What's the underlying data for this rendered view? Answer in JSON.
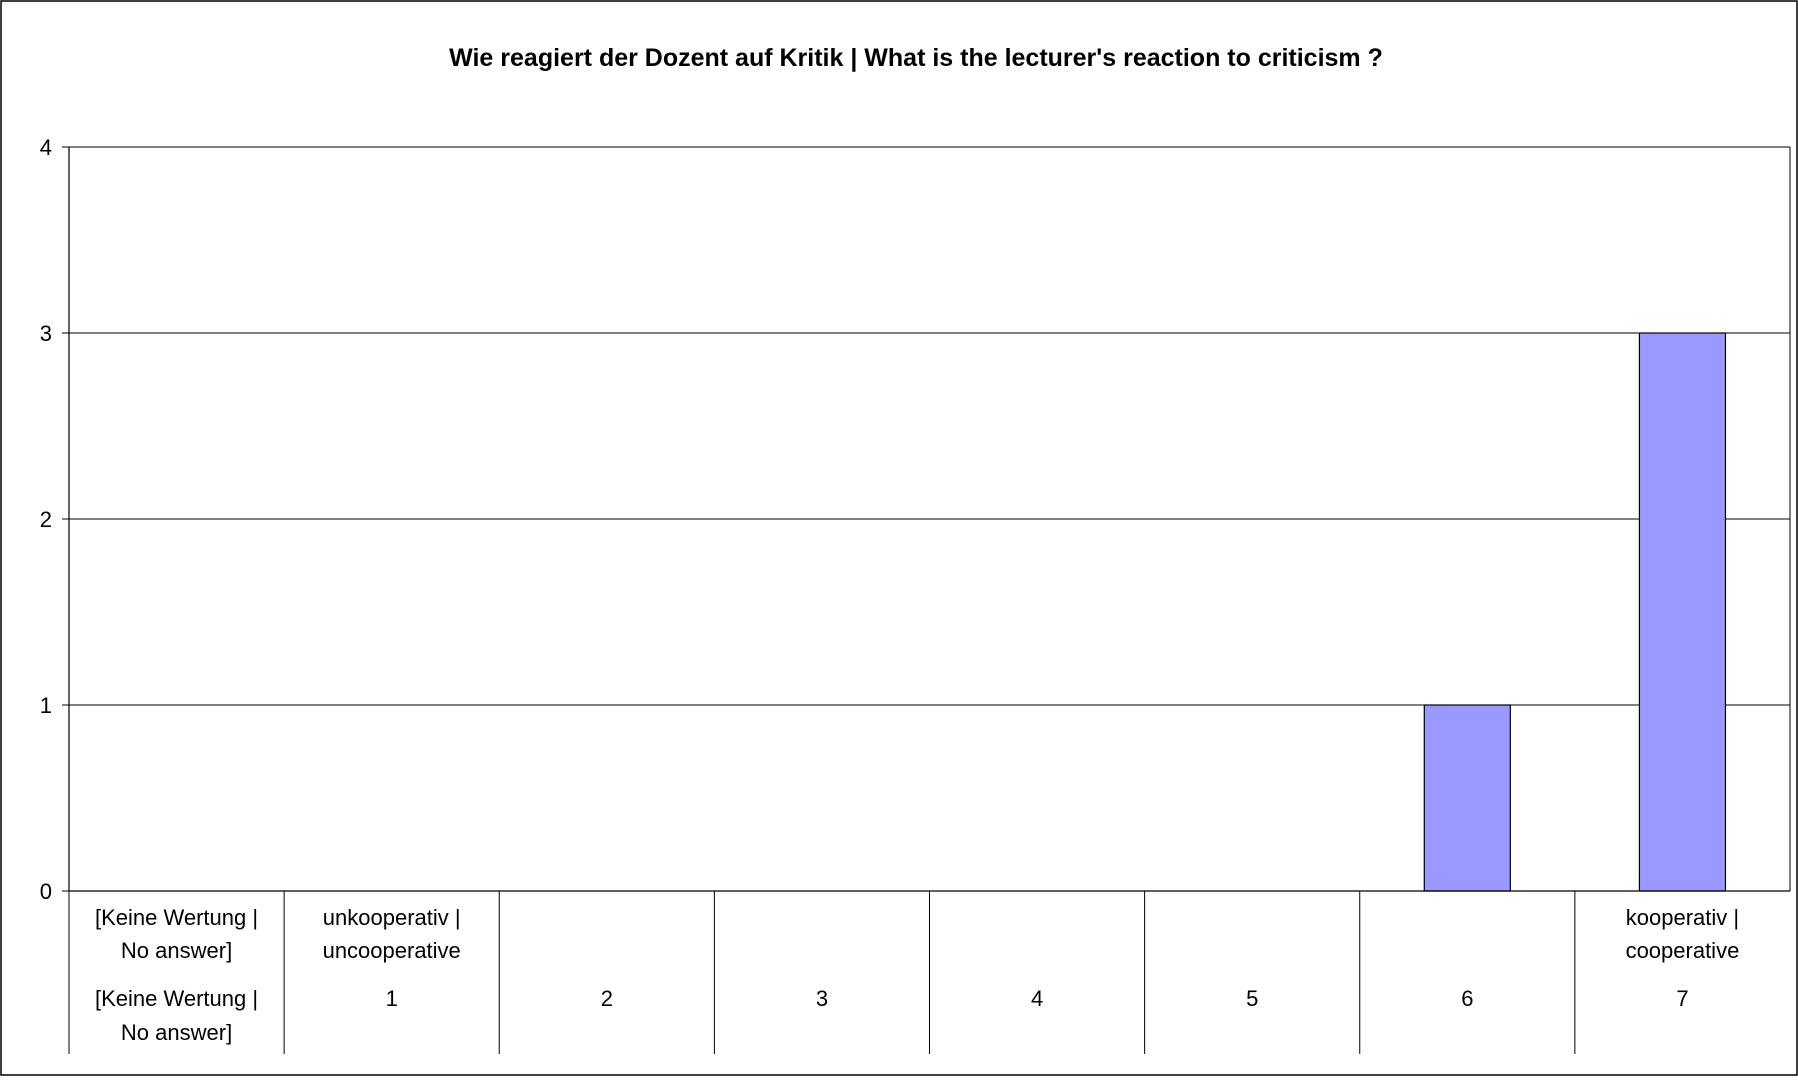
{
  "chart_data": {
    "type": "bar",
    "title": "Wie reagiert der Dozent auf Kritik | What is the lecturer's reaction to criticism ?",
    "xlabel": "",
    "ylabel": "",
    "ylim": [
      0,
      4
    ],
    "yticks": [
      0,
      1,
      2,
      3,
      4
    ],
    "grid": true,
    "legend": "none",
    "bar_color": "#9999ff",
    "categories": [
      {
        "upper": [
          "[Keine Wertung |",
          "No answer]"
        ],
        "lower": [
          "[Keine Wertung |",
          "No answer]"
        ],
        "value": 0
      },
      {
        "upper": [
          "unkooperativ |",
          "uncooperative"
        ],
        "lower": [
          "1"
        ],
        "value": 0
      },
      {
        "upper": [],
        "lower": [
          "2"
        ],
        "value": 0
      },
      {
        "upper": [],
        "lower": [
          "3"
        ],
        "value": 0
      },
      {
        "upper": [],
        "lower": [
          "4"
        ],
        "value": 0
      },
      {
        "upper": [],
        "lower": [
          "5"
        ],
        "value": 0
      },
      {
        "upper": [],
        "lower": [
          "6"
        ],
        "value": 1
      },
      {
        "upper": [
          "kooperativ |",
          "cooperative"
        ],
        "lower": [
          "7"
        ],
        "value": 3
      }
    ]
  }
}
